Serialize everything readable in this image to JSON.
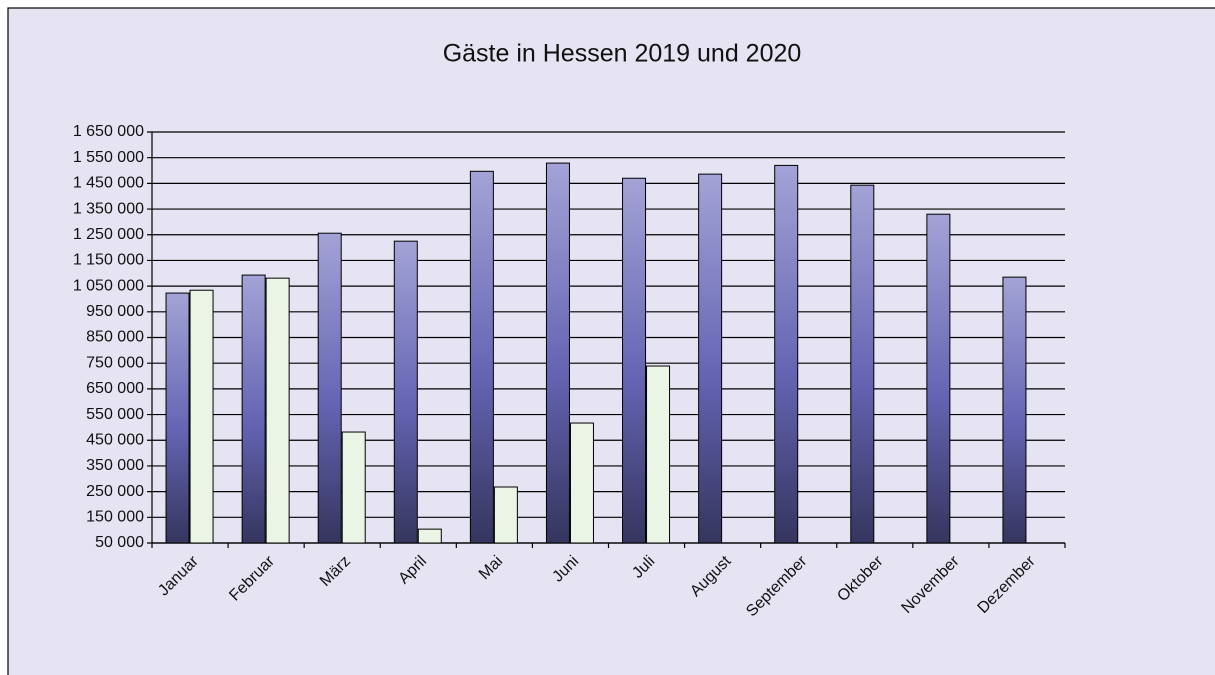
{
  "chart_data": {
    "type": "bar",
    "title": "Gäste in Hessen 2019 und 2020",
    "categories": [
      "Januar",
      "Februar",
      "März",
      "April",
      "Mai",
      "Juni",
      "Juli",
      "August",
      "September",
      "Oktober",
      "November",
      "Dezember"
    ],
    "series": [
      {
        "color": "#6a6ab8",
        "values": [
          1023000,
          1093000,
          1256000,
          1225000,
          1497000,
          1529000,
          1470000,
          1486000,
          1520000,
          1443000,
          1330000,
          1085000
        ]
      },
      {
        "color": "#eaf5e6",
        "values": [
          1034000,
          1081000,
          482000,
          104000,
          268000,
          517000,
          739000,
          null,
          null,
          null,
          null,
          null
        ]
      }
    ],
    "ylim": [
      50000,
      1650000
    ],
    "yticks": [
      {
        "value": 50000,
        "label": "50 000"
      },
      {
        "value": 150000,
        "label": "150 000"
      },
      {
        "value": 250000,
        "label": "250 000"
      },
      {
        "value": 350000,
        "label": "350 000"
      },
      {
        "value": 450000,
        "label": "450 000"
      },
      {
        "value": 550000,
        "label": "550 000"
      },
      {
        "value": 650000,
        "label": "650 000"
      },
      {
        "value": 750000,
        "label": "750 000"
      },
      {
        "value": 850000,
        "label": "850 000"
      },
      {
        "value": 950000,
        "label": "950 000"
      },
      {
        "value": 1050000,
        "label": "1 050 000"
      },
      {
        "value": 1150000,
        "label": "1 150 000"
      },
      {
        "value": 1250000,
        "label": "1 250 000"
      },
      {
        "value": 1350000,
        "label": "1 350 000"
      },
      {
        "value": 1450000,
        "label": "1 450 000"
      },
      {
        "value": 1550000,
        "label": "1 550 000"
      },
      {
        "value": 1650000,
        "label": "1 650 000"
      }
    ],
    "grid": true
  }
}
